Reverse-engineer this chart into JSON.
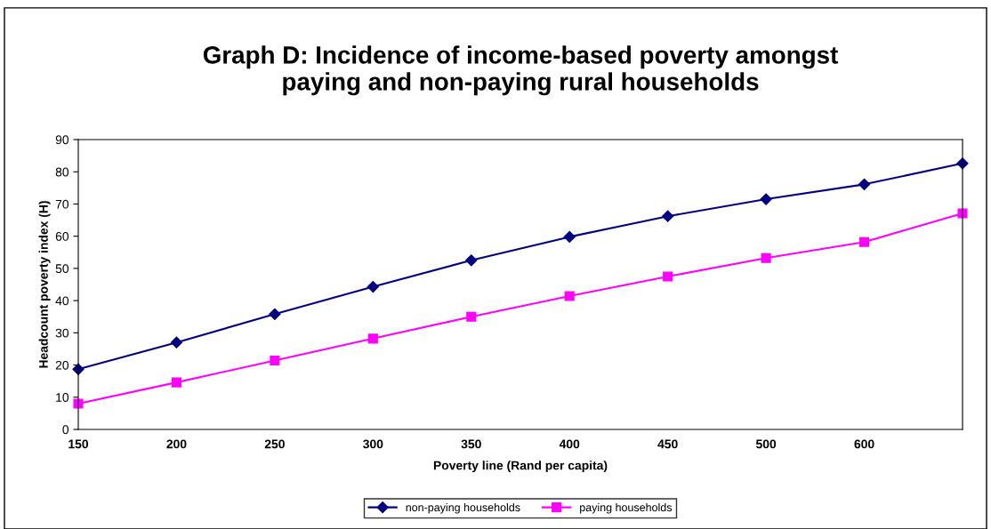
{
  "chart_data": {
    "type": "line",
    "title": "Graph D: Incidence of income-based poverty amongst\npaying and non-paying rural households",
    "xlabel": "Poverty line (Rand per capita)",
    "ylabel": "Headcount poverty index (H)",
    "categories": [
      "150",
      "200",
      "250",
      "300",
      "350",
      "400",
      "450",
      "500",
      "600",
      null
    ],
    "series": [
      {
        "name": "non-paying households",
        "color": "#000080",
        "marker": "diamond",
        "values": [
          18.7,
          27,
          35.8,
          44.3,
          52.5,
          59.8,
          66.2,
          71.5,
          76.1,
          82.6
        ]
      },
      {
        "name": "paying households",
        "color": "#ff00ff",
        "marker": "square",
        "values": [
          8,
          14.6,
          21.4,
          28.2,
          35,
          41.4,
          47.5,
          53.2,
          58.2,
          67.1
        ]
      }
    ],
    "ylim": [
      0,
      90
    ],
    "yticks": [
      0,
      10,
      20,
      30,
      40,
      50,
      60,
      70,
      80,
      90
    ],
    "grid": false,
    "legend": "bottom",
    "line_style": "solid"
  }
}
